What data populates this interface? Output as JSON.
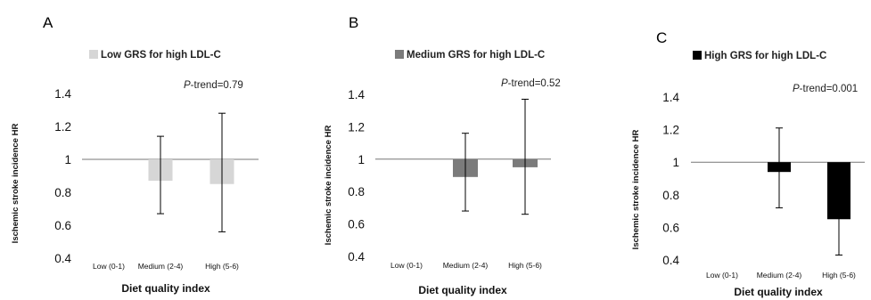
{
  "chart_data": [
    {
      "type": "bar",
      "panel": "A",
      "legend": "Low GRS for high LDL-C",
      "color": "#d6d6d6",
      "ptrend_label": "P",
      "ptrend_value": "-trend=0.79",
      "categories": [
        "Low (0-1)",
        "Medium (2-4)",
        "High (5-6)"
      ],
      "values": [
        1.0,
        0.87,
        0.85
      ],
      "ci_low": [
        null,
        0.67,
        0.56
      ],
      "ci_high": [
        null,
        1.14,
        1.28
      ],
      "ylim": [
        0.4,
        1.4
      ],
      "yticks": [
        "1.4",
        "1.2",
        "1",
        "0.8",
        "0.6",
        "0.4"
      ],
      "baseline": 1,
      "xlabel": "Diet quality index",
      "ylabel": "Ischemic stroke incidence HR"
    },
    {
      "type": "bar",
      "panel": "B",
      "legend": "Medium GRS for high LDL-C",
      "color": "#7b7b7b",
      "ptrend_label": "P",
      "ptrend_value": "-trend=0.52",
      "categories": [
        "Low (0-1)",
        "Medium (2-4)",
        "High (5-6)"
      ],
      "values": [
        1.0,
        0.89,
        0.95
      ],
      "ci_low": [
        null,
        0.68,
        0.66
      ],
      "ci_high": [
        null,
        1.16,
        1.37
      ],
      "ylim": [
        0.4,
        1.4
      ],
      "yticks": [
        "1.4",
        "1.2",
        "1",
        "0.8",
        "0.6",
        "0.4"
      ],
      "baseline": 1,
      "xlabel": "Diet quality index",
      "ylabel": "Ischemic stroke incidence HR"
    },
    {
      "type": "bar",
      "panel": "C",
      "legend": "High GRS for high LDL-C",
      "color": "#000000",
      "ptrend_label": "P",
      "ptrend_value": "-trend=0.001",
      "categories": [
        "Low (0-1)",
        "Medium (2-4)",
        "High (5-6)"
      ],
      "values": [
        1.0,
        0.94,
        0.65
      ],
      "ci_low": [
        null,
        0.72,
        0.43
      ],
      "ci_high": [
        null,
        1.21,
        0.99
      ],
      "ylim": [
        0.4,
        1.4
      ],
      "yticks": [
        "1.4",
        "1.2",
        "1",
        "0.8",
        "0.6",
        "0.4"
      ],
      "baseline": 1,
      "xlabel": "Diet quality index",
      "ylabel": "Ischemic stroke incidence HR"
    }
  ]
}
